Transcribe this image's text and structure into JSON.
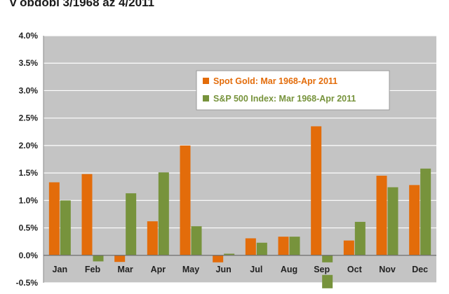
{
  "title": "v období 3/1968 až 4/2011",
  "colors": {
    "plot_background": "#c4c4c4",
    "gridline": "#ffffff",
    "series_gold": "#e36c0a",
    "series_sp500": "#77933c"
  },
  "chart_data": {
    "type": "bar",
    "title": "v období 3/1968 až 4/2011",
    "xlabel": "",
    "ylabel": "",
    "ylim": [
      -0.5,
      4.0
    ],
    "y_tick_labels": [
      "-0.5%",
      "0.0%",
      "0.5%",
      "1.0%",
      "1.5%",
      "2.0%",
      "2.5%",
      "3.0%",
      "3.5%",
      "4.0%"
    ],
    "y_ticks": [
      -0.5,
      0.0,
      0.5,
      1.0,
      1.5,
      2.0,
      2.5,
      3.0,
      3.5,
      4.0
    ],
    "grid": true,
    "legend_position": "top-center",
    "categories": [
      "Jan",
      "Feb",
      "Mar",
      "Apr",
      "May",
      "Jun",
      "Jul",
      "Aug",
      "Sep",
      "Oct",
      "Nov",
      "Dec"
    ],
    "series": [
      {
        "name": "Spot Gold: Mar 1968-Apr 2011",
        "color": "#e36c0a",
        "values": [
          1.33,
          1.48,
          -0.12,
          0.62,
          2.0,
          -0.35,
          0.31,
          0.34,
          2.35,
          0.27,
          1.45,
          1.28
        ]
      },
      {
        "name": "S&P 500 Index: Mar 1968-Apr 2011",
        "color": "#77933c",
        "values": [
          1.0,
          -0.11,
          1.13,
          1.51,
          0.53,
          0.03,
          0.23,
          0.34,
          -0.6,
          0.61,
          1.24,
          1.58
        ]
      }
    ]
  }
}
